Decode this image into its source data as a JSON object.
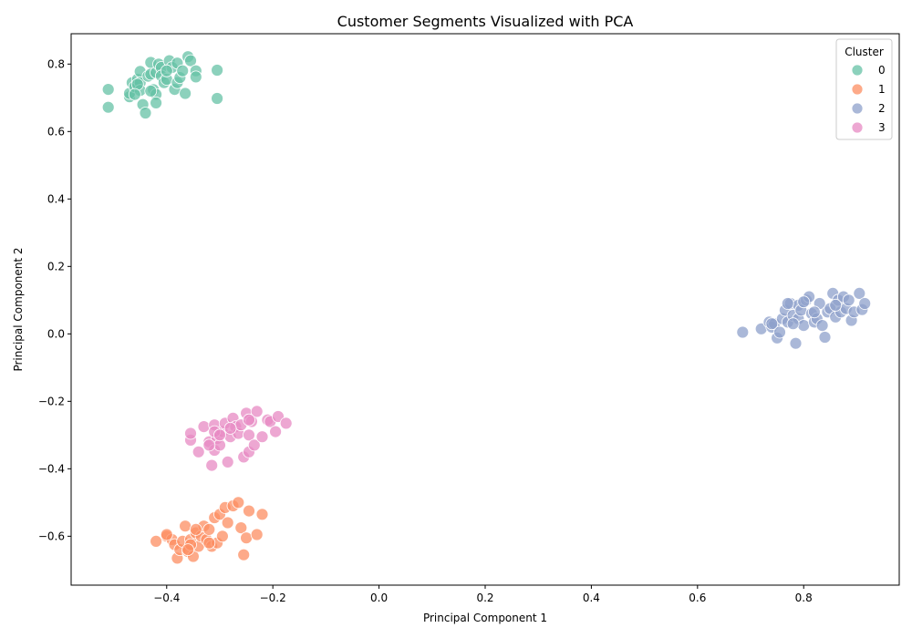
{
  "chart_data": {
    "type": "scatter",
    "title": "Customer Segments Visualized with PCA",
    "xlabel": "Principal Component 1",
    "ylabel": "Principal Component 2",
    "xlim": [
      -0.58,
      0.98
    ],
    "ylim": [
      -0.745,
      0.89
    ],
    "xticks": [
      -0.4,
      -0.2,
      0.0,
      0.2,
      0.4,
      0.6,
      0.8
    ],
    "xtick_labels": [
      "−0.4",
      "−0.2",
      "0.0",
      "0.2",
      "0.4",
      "0.6",
      "0.8"
    ],
    "yticks": [
      -0.6,
      -0.4,
      -0.2,
      0.0,
      0.2,
      0.4,
      0.6,
      0.8
    ],
    "ytick_labels": [
      "−0.6",
      "−0.4",
      "−0.2",
      "0.0",
      "0.2",
      "0.4",
      "0.6",
      "0.8"
    ],
    "grid": false,
    "legend": {
      "title": "Cluster",
      "placement": "top-right"
    },
    "series": [
      {
        "name": "0",
        "color": "#66c2a5",
        "points": [
          [
            -0.51,
            0.725
          ],
          [
            -0.51,
            0.672
          ],
          [
            -0.47,
            0.703
          ],
          [
            -0.47,
            0.713
          ],
          [
            -0.465,
            0.745
          ],
          [
            -0.46,
            0.733
          ],
          [
            -0.455,
            0.755
          ],
          [
            -0.45,
            0.778
          ],
          [
            -0.45,
            0.745
          ],
          [
            -0.45,
            0.722
          ],
          [
            -0.445,
            0.68
          ],
          [
            -0.44,
            0.655
          ],
          [
            -0.435,
            0.764
          ],
          [
            -0.43,
            0.805
          ],
          [
            -0.43,
            0.77
          ],
          [
            -0.425,
            0.724
          ],
          [
            -0.42,
            0.71
          ],
          [
            -0.42,
            0.685
          ],
          [
            -0.42,
            0.775
          ],
          [
            -0.415,
            0.8
          ],
          [
            -0.41,
            0.79
          ],
          [
            -0.41,
            0.765
          ],
          [
            -0.405,
            0.745
          ],
          [
            -0.4,
            0.755
          ],
          [
            -0.395,
            0.81
          ],
          [
            -0.39,
            0.79
          ],
          [
            -0.385,
            0.725
          ],
          [
            -0.38,
            0.803
          ],
          [
            -0.38,
            0.745
          ],
          [
            -0.375,
            0.76
          ],
          [
            -0.37,
            0.78
          ],
          [
            -0.365,
            0.713
          ],
          [
            -0.36,
            0.822
          ],
          [
            -0.355,
            0.81
          ],
          [
            -0.345,
            0.78
          ],
          [
            -0.345,
            0.762
          ],
          [
            -0.305,
            0.782
          ],
          [
            -0.305,
            0.698
          ],
          [
            -0.455,
            0.74
          ],
          [
            -0.4,
            0.78
          ],
          [
            -0.43,
            0.72
          ],
          [
            -0.46,
            0.71
          ]
        ]
      },
      {
        "name": "1",
        "color": "#fc8d62",
        "points": [
          [
            -0.42,
            -0.615
          ],
          [
            -0.4,
            -0.6
          ],
          [
            -0.39,
            -0.61
          ],
          [
            -0.385,
            -0.625
          ],
          [
            -0.38,
            -0.665
          ],
          [
            -0.375,
            -0.64
          ],
          [
            -0.37,
            -0.615
          ],
          [
            -0.365,
            -0.57
          ],
          [
            -0.36,
            -0.645
          ],
          [
            -0.355,
            -0.61
          ],
          [
            -0.35,
            -0.66
          ],
          [
            -0.345,
            -0.59
          ],
          [
            -0.34,
            -0.63
          ],
          [
            -0.335,
            -0.6
          ],
          [
            -0.33,
            -0.57
          ],
          [
            -0.325,
            -0.61
          ],
          [
            -0.32,
            -0.58
          ],
          [
            -0.315,
            -0.63
          ],
          [
            -0.31,
            -0.545
          ],
          [
            -0.305,
            -0.62
          ],
          [
            -0.3,
            -0.535
          ],
          [
            -0.295,
            -0.6
          ],
          [
            -0.29,
            -0.515
          ],
          [
            -0.285,
            -0.56
          ],
          [
            -0.275,
            -0.51
          ],
          [
            -0.265,
            -0.5
          ],
          [
            -0.26,
            -0.575
          ],
          [
            -0.255,
            -0.655
          ],
          [
            -0.25,
            -0.605
          ],
          [
            -0.245,
            -0.525
          ],
          [
            -0.23,
            -0.595
          ],
          [
            -0.22,
            -0.535
          ],
          [
            -0.4,
            -0.595
          ],
          [
            -0.355,
            -0.625
          ],
          [
            -0.345,
            -0.58
          ],
          [
            -0.36,
            -0.64
          ],
          [
            -0.32,
            -0.62
          ]
        ]
      },
      {
        "name": "2",
        "color": "#8da0cb",
        "points": [
          [
            0.685,
            0.005
          ],
          [
            0.72,
            0.015
          ],
          [
            0.735,
            0.035
          ],
          [
            0.74,
            0.02
          ],
          [
            0.745,
            0.03
          ],
          [
            0.75,
            -0.012
          ],
          [
            0.755,
            0.005
          ],
          [
            0.76,
            0.045
          ],
          [
            0.765,
            0.07
          ],
          [
            0.77,
            0.035
          ],
          [
            0.775,
            0.09
          ],
          [
            0.78,
            0.055
          ],
          [
            0.785,
            -0.028
          ],
          [
            0.79,
            0.045
          ],
          [
            0.79,
            0.085
          ],
          [
            0.795,
            0.07
          ],
          [
            0.8,
            0.025
          ],
          [
            0.805,
            0.1
          ],
          [
            0.81,
            0.11
          ],
          [
            0.815,
            0.06
          ],
          [
            0.82,
            0.035
          ],
          [
            0.825,
            0.045
          ],
          [
            0.83,
            0.09
          ],
          [
            0.835,
            0.025
          ],
          [
            0.84,
            -0.01
          ],
          [
            0.845,
            0.065
          ],
          [
            0.85,
            0.075
          ],
          [
            0.855,
            0.12
          ],
          [
            0.86,
            0.05
          ],
          [
            0.865,
            0.1
          ],
          [
            0.87,
            0.065
          ],
          [
            0.875,
            0.11
          ],
          [
            0.88,
            0.075
          ],
          [
            0.885,
            0.1
          ],
          [
            0.89,
            0.04
          ],
          [
            0.895,
            0.065
          ],
          [
            0.905,
            0.12
          ],
          [
            0.91,
            0.072
          ],
          [
            0.915,
            0.09
          ],
          [
            0.78,
            0.03
          ],
          [
            0.77,
            0.09
          ],
          [
            0.82,
            0.065
          ],
          [
            0.86,
            0.085
          ],
          [
            0.8,
            0.095
          ],
          [
            0.74,
            0.03
          ]
        ]
      },
      {
        "name": "3",
        "color": "#e78ac3",
        "points": [
          [
            -0.355,
            -0.315
          ],
          [
            -0.355,
            -0.295
          ],
          [
            -0.34,
            -0.35
          ],
          [
            -0.33,
            -0.275
          ],
          [
            -0.32,
            -0.32
          ],
          [
            -0.315,
            -0.39
          ],
          [
            -0.31,
            -0.27
          ],
          [
            -0.31,
            -0.345
          ],
          [
            -0.305,
            -0.31
          ],
          [
            -0.3,
            -0.33
          ],
          [
            -0.295,
            -0.29
          ],
          [
            -0.29,
            -0.265
          ],
          [
            -0.285,
            -0.38
          ],
          [
            -0.28,
            -0.305
          ],
          [
            -0.275,
            -0.25
          ],
          [
            -0.27,
            -0.275
          ],
          [
            -0.265,
            -0.295
          ],
          [
            -0.26,
            -0.27
          ],
          [
            -0.255,
            -0.365
          ],
          [
            -0.25,
            -0.235
          ],
          [
            -0.245,
            -0.3
          ],
          [
            -0.245,
            -0.35
          ],
          [
            -0.24,
            -0.26
          ],
          [
            -0.235,
            -0.33
          ],
          [
            -0.23,
            -0.23
          ],
          [
            -0.22,
            -0.305
          ],
          [
            -0.21,
            -0.255
          ],
          [
            -0.205,
            -0.26
          ],
          [
            -0.195,
            -0.29
          ],
          [
            -0.19,
            -0.245
          ],
          [
            -0.175,
            -0.265
          ],
          [
            -0.31,
            -0.29
          ],
          [
            -0.28,
            -0.28
          ],
          [
            -0.245,
            -0.255
          ],
          [
            -0.3,
            -0.3
          ],
          [
            -0.32,
            -0.33
          ]
        ]
      }
    ]
  }
}
